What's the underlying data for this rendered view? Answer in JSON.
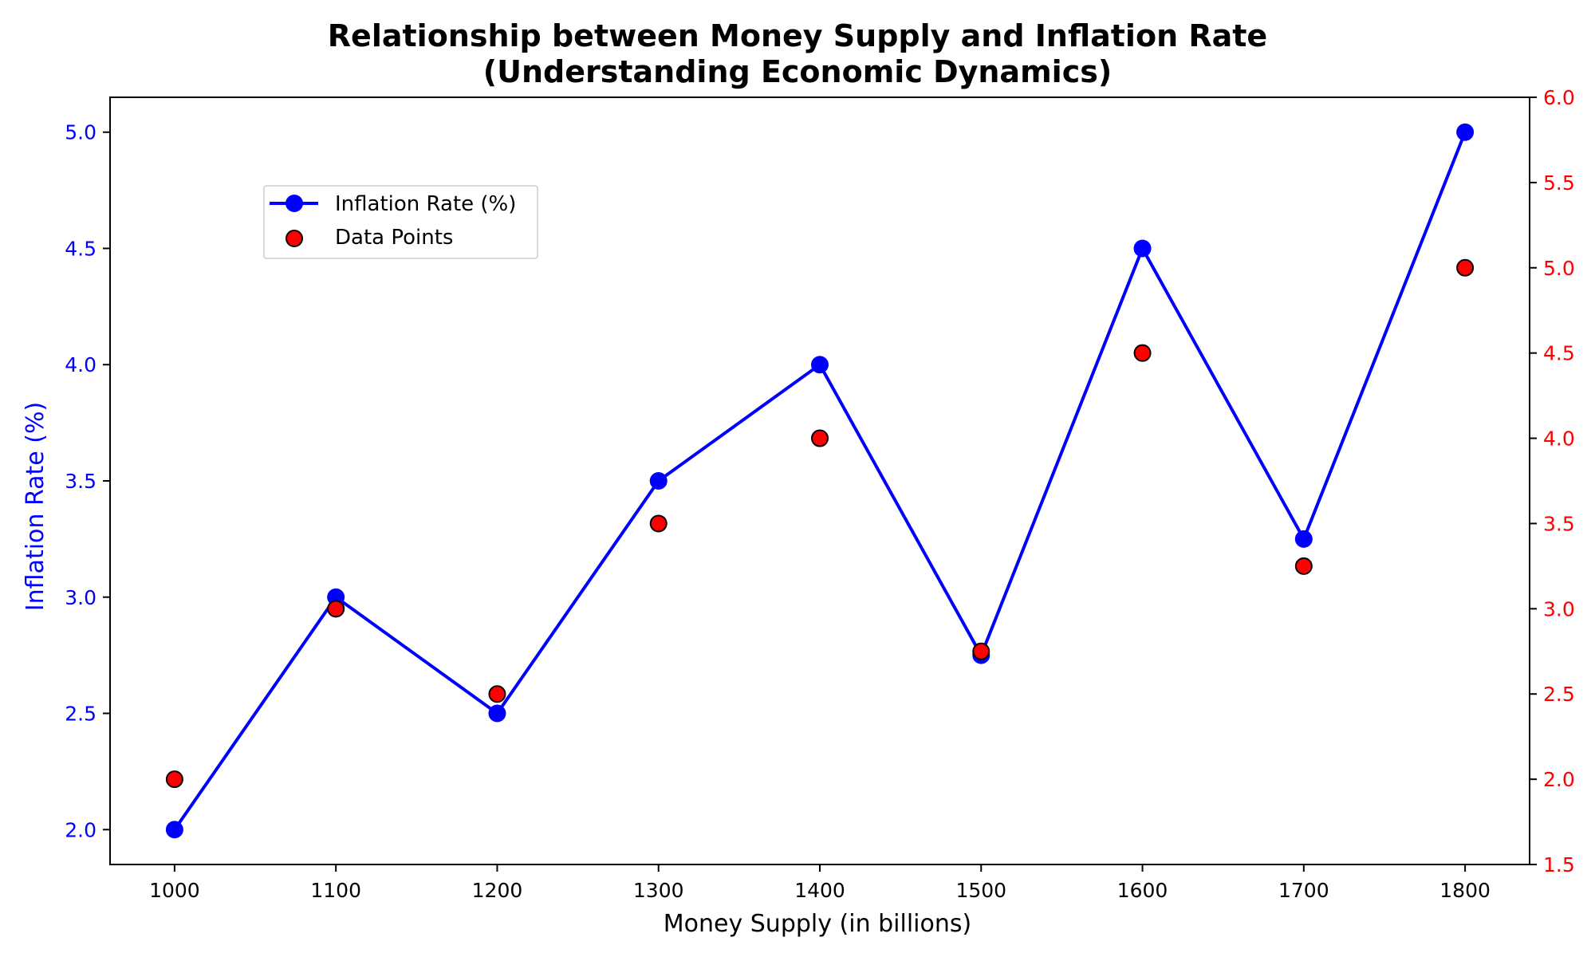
{
  "chart_data": {
    "type": "line",
    "title": "Relationship between Money Supply and Inflation Rate",
    "subtitle": "(Understanding Economic Dynamics)",
    "xlabel": "Money Supply (in billions)",
    "ylabel": "Inflation Rate (%)",
    "x": [
      1000,
      1100,
      1200,
      1300,
      1400,
      1500,
      1600,
      1700,
      1800
    ],
    "xlim": [
      960,
      1840
    ],
    "ylim": [
      1.85,
      5.15
    ],
    "y2lim": [
      1.5,
      6.0
    ],
    "xticks": [
      1000,
      1100,
      1200,
      1300,
      1400,
      1500,
      1600,
      1700,
      1800
    ],
    "yticks": [
      "2.0",
      "2.5",
      "3.0",
      "3.5",
      "4.0",
      "4.5",
      "5.0"
    ],
    "y2ticks": [
      "1.5",
      "2.0",
      "2.5",
      "3.0",
      "3.5",
      "4.0",
      "4.5",
      "5.0",
      "5.5",
      "6.0"
    ],
    "grid": false,
    "legend_position": "upper-left",
    "series": [
      {
        "name": "Inflation Rate (%)",
        "kind": "line-with-markers",
        "axis": "left",
        "color": "#0000ff",
        "values": [
          2.0,
          3.0,
          2.5,
          3.5,
          4.0,
          2.75,
          4.5,
          3.25,
          5.0
        ]
      },
      {
        "name": "Data Points",
        "kind": "scatter",
        "axis": "right",
        "color": "#ff0000",
        "edge_color": "#000000",
        "values": [
          2.0,
          3.0,
          2.5,
          3.5,
          4.0,
          2.75,
          4.5,
          3.25,
          5.0
        ]
      }
    ],
    "colors": {
      "left_axis": "#0000ff",
      "right_axis": "#ff0000",
      "frame": "#000000"
    }
  }
}
